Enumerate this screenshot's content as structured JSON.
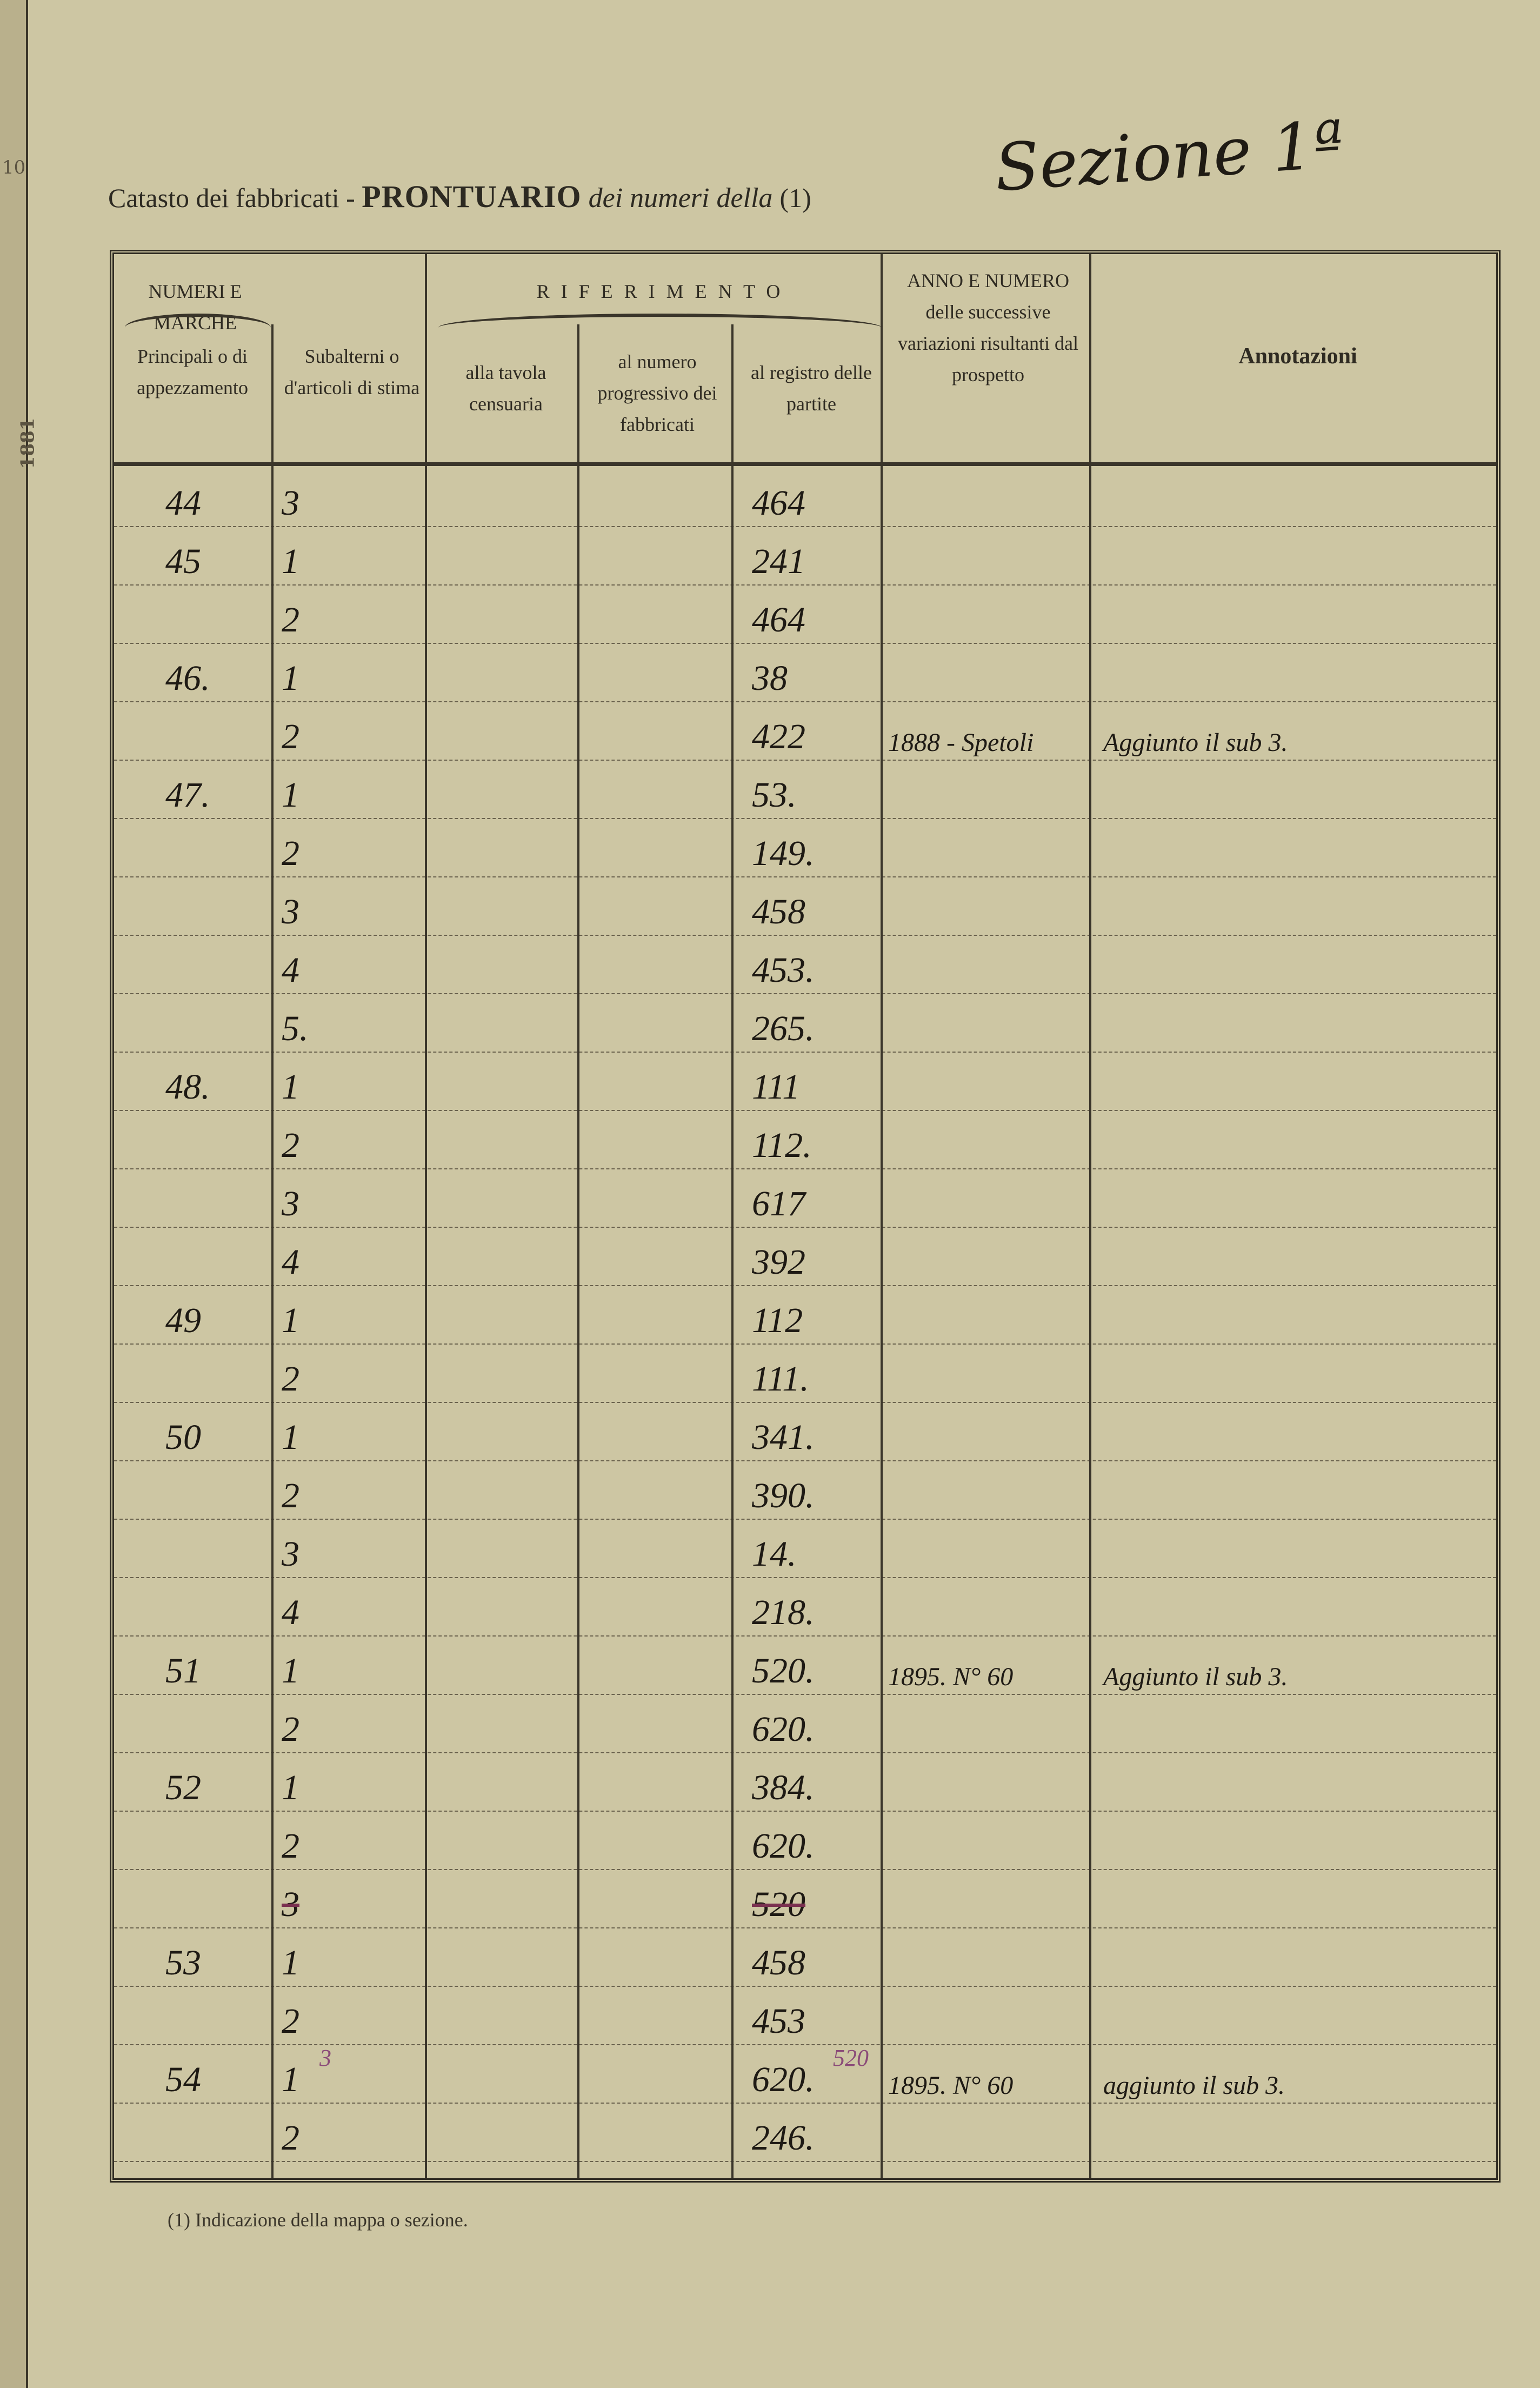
{
  "page": {
    "title_prefix": "Catasto dei fabbricati - ",
    "title_bold": "PRONTUARIO",
    "title_italic": " dei numeri della ",
    "title_ref": "(1)",
    "sezione_handwritten": "Sezione 1ª",
    "paper_color": "#cdc6a3",
    "ink_color": "#1e1a14",
    "correction_ink_color": "#8a4a78"
  },
  "left_margin": {
    "marks": [
      "10",
      "1881"
    ]
  },
  "header": {
    "numeri_e_marche": "NUMERI E MARCHE",
    "principali": "Principali o di appezzamento",
    "subalterni": "Subalterni o d'articoli di stima",
    "riferimento": "R I F E R I M E N T O",
    "alla_tavola": "alla tavola censuaria",
    "al_numero": "al numero progressivo dei fabbricati",
    "al_registro": "al registro delle partite",
    "anno_numero": "ANNO E NUMERO delle successive variazioni risultanti dal prospetto",
    "annotazioni": "Annotazioni"
  },
  "rows": [
    {
      "principale": "44",
      "subalterno": "3",
      "registro": "464"
    },
    {
      "principale": "45",
      "subalterno": "1",
      "registro": "241"
    },
    {
      "principale": "",
      "subalterno": "2",
      "registro": "464"
    },
    {
      "principale": "46.",
      "subalterno": "1",
      "registro": "38"
    },
    {
      "principale": "",
      "subalterno": "2",
      "registro": "422",
      "anno": "1888 - Spetoli",
      "annotazioni": "Aggiunto il sub 3."
    },
    {
      "principale": "47.",
      "subalterno": "1",
      "registro": "53."
    },
    {
      "principale": "",
      "subalterno": "2",
      "registro": "149."
    },
    {
      "principale": "",
      "subalterno": "3",
      "registro": "458"
    },
    {
      "principale": "",
      "subalterno": "4",
      "registro": "453."
    },
    {
      "principale": "",
      "subalterno": "5.",
      "registro": "265."
    },
    {
      "principale": "48.",
      "subalterno": "1",
      "registro": "111"
    },
    {
      "principale": "",
      "subalterno": "2",
      "registro": "112."
    },
    {
      "principale": "",
      "subalterno": "3",
      "registro": "617"
    },
    {
      "principale": "",
      "subalterno": "4",
      "registro": "392"
    },
    {
      "principale": "49",
      "subalterno": "1",
      "registro": "112"
    },
    {
      "principale": "",
      "subalterno": "2",
      "registro": "111."
    },
    {
      "principale": "50",
      "subalterno": "1",
      "registro": "341."
    },
    {
      "principale": "",
      "subalterno": "2",
      "registro": "390."
    },
    {
      "principale": "",
      "subalterno": "3",
      "registro": "14."
    },
    {
      "principale": "",
      "subalterno": "4",
      "registro": "218."
    },
    {
      "principale": "51",
      "subalterno": "1",
      "registro": "520.",
      "anno": "1895. N° 60",
      "annotazioni": "Aggiunto il sub 3."
    },
    {
      "principale": "",
      "subalterno": "2",
      "registro": "620."
    },
    {
      "principale": "52",
      "subalterno": "1",
      "registro": "384."
    },
    {
      "principale": "",
      "subalterno": "2",
      "registro": "620."
    },
    {
      "principale": "",
      "subalterno": "3",
      "registro": "520",
      "struck": true
    },
    {
      "principale": "53",
      "subalterno": "1",
      "registro": "458"
    },
    {
      "principale": "",
      "subalterno": "2",
      "registro": "453"
    },
    {
      "principale": "54",
      "subalterno": "1",
      "subalterno_over": "3",
      "registro": "620.",
      "registro_over": "520",
      "anno": "1895. N° 60",
      "annotazioni": "aggiunto il sub 3."
    },
    {
      "principale": "",
      "subalterno": "2",
      "registro": "246."
    }
  ],
  "footnote": "(1) Indicazione della mappa o sezione."
}
